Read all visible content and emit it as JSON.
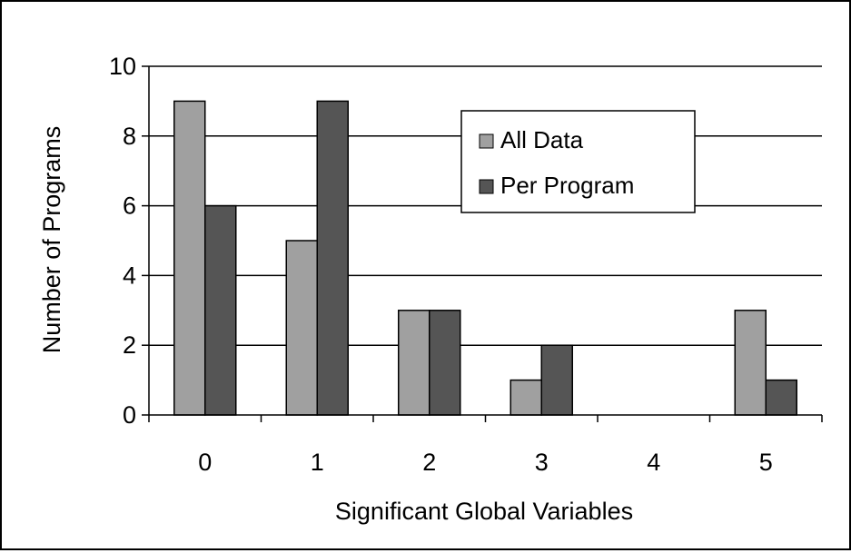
{
  "chart_data": {
    "type": "bar",
    "title": "",
    "xlabel": "Significant Global Variables",
    "ylabel": "Number of Programs",
    "categories": [
      "0",
      "1",
      "2",
      "3",
      "4",
      "5"
    ],
    "series": [
      {
        "name": "All Data",
        "values": [
          9,
          5,
          3,
          1,
          0,
          3
        ],
        "color": "#a0a0a0"
      },
      {
        "name": "Per Program",
        "values": [
          6,
          9,
          3,
          2,
          0,
          1
        ],
        "color": "#555555"
      }
    ],
    "ylim": [
      0,
      10
    ],
    "yticks": [
      "0",
      "2",
      "4",
      "6",
      "8",
      "10"
    ],
    "grid": true,
    "legend": "top-right"
  }
}
